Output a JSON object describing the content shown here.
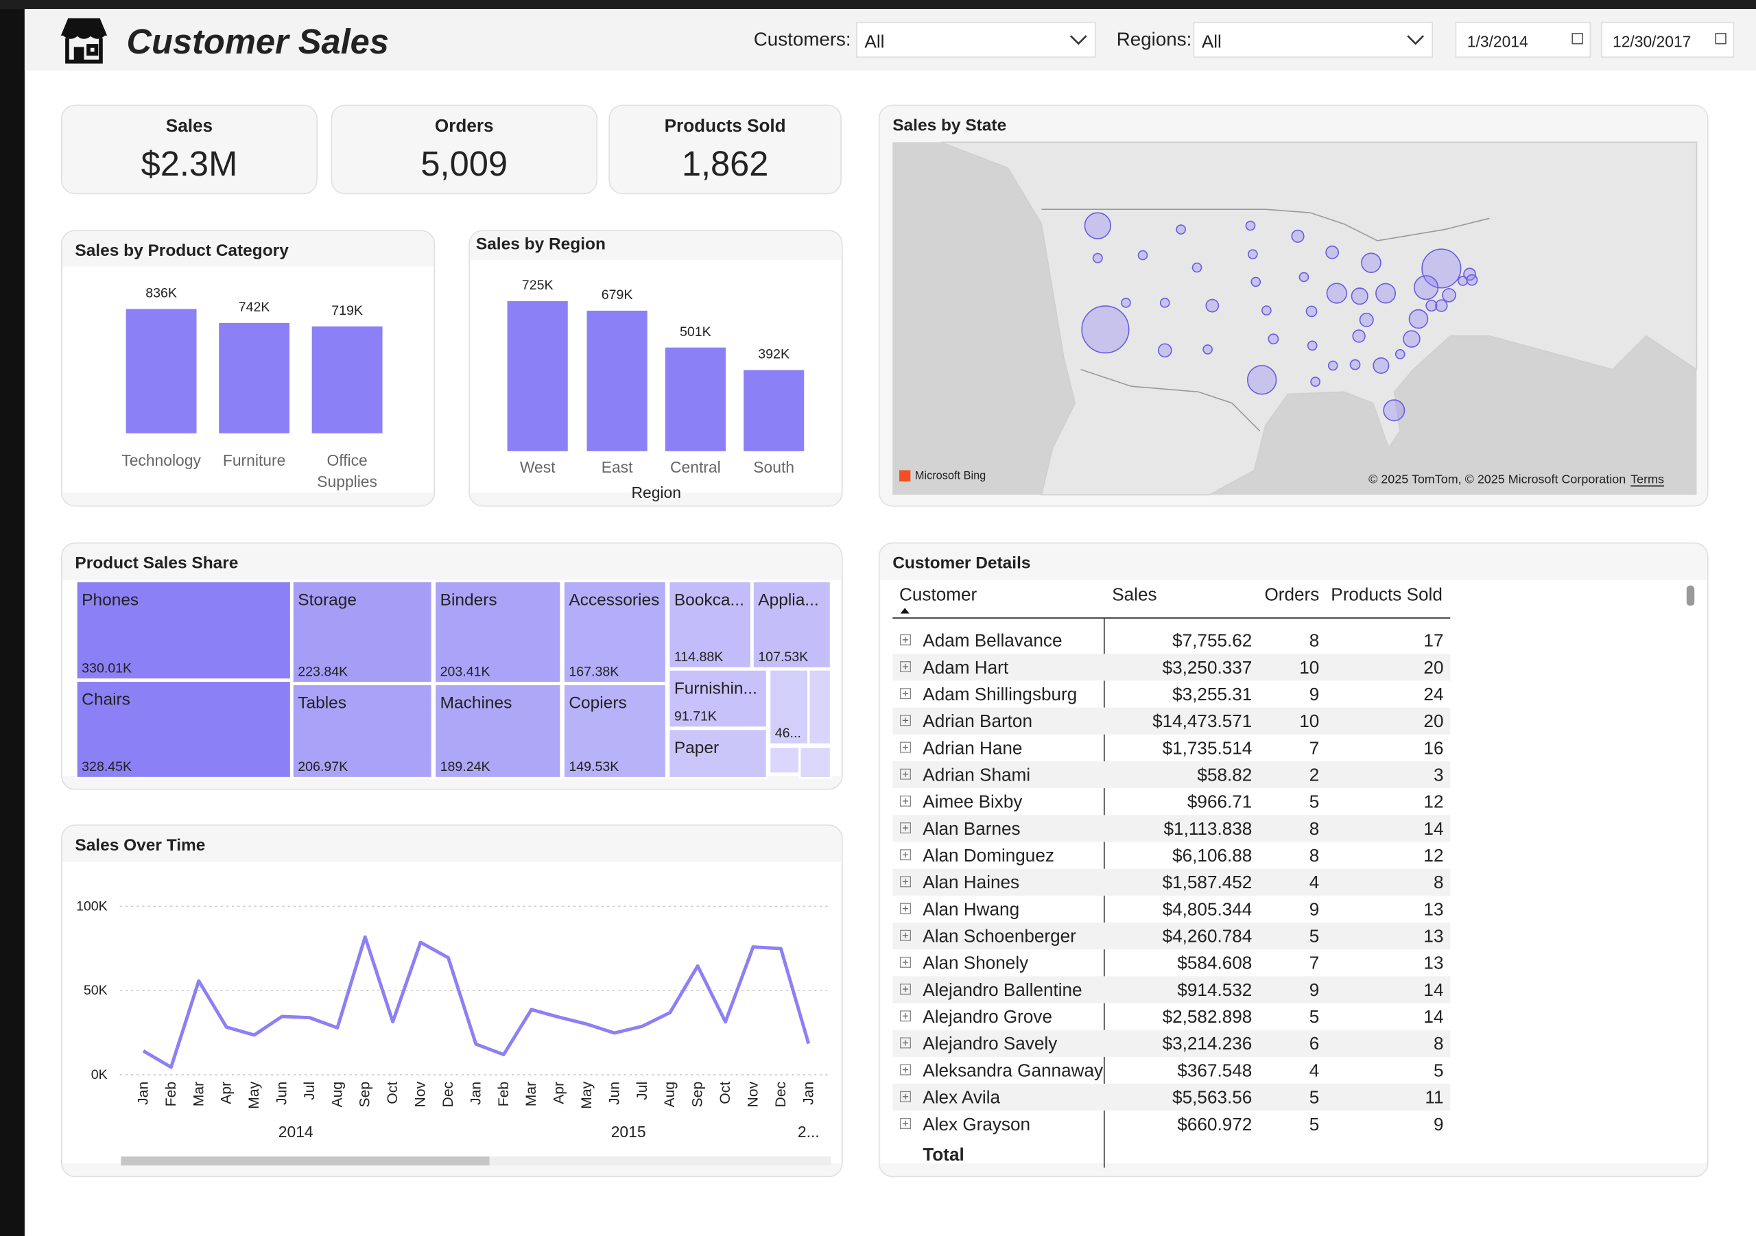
{
  "header": {
    "title": "Customer Sales",
    "customers_label": "Customers:",
    "customers_value": "All",
    "regions_label": "Regions:",
    "regions_value": "All",
    "date_from": "1/3/2014",
    "date_to": "12/30/2017"
  },
  "kpis": [
    {
      "label": "Sales",
      "value": "$2.3M"
    },
    {
      "label": "Orders",
      "value": "5,009"
    },
    {
      "label": "Products Sold",
      "value": "1,862"
    }
  ],
  "chart_data": [
    {
      "type": "bar",
      "title": "Sales by Product Category",
      "categories": [
        "Technology",
        "Furniture",
        "Office Supplies"
      ],
      "values": [
        836,
        742,
        719
      ],
      "value_labels": [
        "836K",
        "742K",
        "719K"
      ],
      "color": "#8b80f5"
    },
    {
      "type": "bar",
      "title": "Sales by Region",
      "x_label": "Region",
      "categories": [
        "West",
        "East",
        "Central",
        "South"
      ],
      "values": [
        725,
        679,
        501,
        392
      ],
      "value_labels": [
        "725K",
        "679K",
        "501K",
        "392K"
      ],
      "color": "#8b80f5"
    },
    {
      "type": "treemap",
      "title": "Product Sales Share",
      "color": "#8b80f5",
      "categories": [
        "Phones",
        "Chairs",
        "Storage",
        "Tables",
        "Binders",
        "Machines",
        "Accessories",
        "Copiers",
        "Bookca...",
        "Applia...",
        "Furnishin...",
        "Paper",
        null,
        null,
        null,
        null
      ],
      "values": [
        330.01,
        328.45,
        223.84,
        206.97,
        203.41,
        189.24,
        167.38,
        149.53,
        114.88,
        107.53,
        91.71,
        78,
        46,
        27,
        16,
        12
      ],
      "value_labels": [
        "330.01K",
        "328.45K",
        "223.84K",
        "206.97K",
        "203.41K",
        "189.24K",
        "167.38K",
        "149.53K",
        "114.88K",
        "107.53K",
        "91.71K",
        null,
        "46...",
        null,
        null,
        null
      ]
    },
    {
      "type": "line",
      "title": "Sales Over Time",
      "color": "#8b80f5",
      "grid": true,
      "categories": [
        "Jan",
        "Feb",
        "Mar",
        "Apr",
        "May",
        "Jun",
        "Jul",
        "Aug",
        "Sep",
        "Oct",
        "Nov",
        "Dec",
        "Jan",
        "Feb",
        "Mar",
        "Apr",
        "May",
        "Jun",
        "Jul",
        "Aug",
        "Sep",
        "Oct",
        "Nov",
        "Dec",
        "Jan"
      ],
      "category_groups": [
        "2014",
        "2015",
        "2..."
      ],
      "values": [
        14.2,
        4.5,
        55.7,
        28.3,
        23.6,
        34.6,
        33.9,
        27.9,
        81.8,
        31.5,
        78.6,
        69.5,
        18.2,
        12,
        38.7,
        34.2,
        30.1,
        24.8,
        28.8,
        36.9,
        64.6,
        31.4,
        75.9,
        74.9,
        18.5
      ],
      "ylim": [
        0,
        105
      ],
      "yticks": [
        {
          "value": 0,
          "label": "0K"
        },
        {
          "value": 50,
          "label": "50K"
        },
        {
          "value": 100,
          "label": "100K"
        }
      ]
    },
    {
      "type": "map",
      "title": "Sales by State",
      "color": "#8b80f5",
      "attribution": "© 2025 TomTom, © 2025 Microsoft Corporation",
      "terms": "Terms",
      "provider": "Microsoft Bing",
      "x": [
        -119.5,
        -75.5,
        -99,
        -120.5,
        -77.5,
        -81.7,
        -89.2,
        -82.8,
        -84.7,
        -78.5,
        -79.4,
        -86.2,
        -83.4,
        -85.3,
        -111.7,
        -105.5,
        -89.8,
        -86.3,
        -94.3,
        -71.8,
        -74.5,
        -120.5,
        -116.8,
        -111.7,
        -92.5,
        -97.5,
        -86.8,
        -89.7,
        -92,
        -92.4,
        -99.8,
        -98.4,
        -93.5,
        -100.2,
        -100.5,
        -109.6,
        -114.6,
        -107.5,
        -106.1,
        -80.9,
        -76.8,
        -75.5,
        -72.7,
        -71.5
      ],
      "y": [
        36.5,
        42.9,
        31.2,
        47.4,
        40.9,
        28,
        40.3,
        40.3,
        43.5,
        37.6,
        35.5,
        40,
        32.7,
        37.5,
        34.3,
        39,
        44.6,
        35.8,
        46.3,
        42.3,
        40.1,
        44,
        39.3,
        39.3,
        38.4,
        35.5,
        32.8,
        32.7,
        31,
        34.8,
        41.5,
        38.5,
        42,
        44.4,
        47.4,
        47,
        44.3,
        43,
        34.4,
        33.9,
        39,
        39,
        41.6,
        41.7
      ],
      "sizes": [
        457.7,
        310.9,
        170.2,
        138.6,
        116.5,
        89.5,
        80.2,
        78.3,
        76.3,
        70.6,
        55.6,
        53.6,
        49.1,
        36.6,
        35.3,
        32.1,
        32.1,
        30.7,
        29.9,
        28.6,
        35.8,
        17.4,
        16.7,
        11.2,
        22.2,
        19.7,
        19.5,
        10.8,
        9.2,
        11.7,
        7.5,
        2.9,
        4.6,
        1.3,
        0.9,
        5.6,
        4.4,
        1.6,
        4.8,
        8.5,
        23.7,
        27.5,
        13.4,
        22.6
      ]
    }
  ],
  "table": {
    "title": "Customer Details",
    "columns": [
      "Customer",
      "Sales",
      "Orders",
      "Products Sold"
    ],
    "rows": [
      [
        "Adam Bellavance",
        "$7,755.62",
        8,
        17
      ],
      [
        "Adam Hart",
        "$3,250.337",
        10,
        20
      ],
      [
        "Adam Shillingsburg",
        "$3,255.31",
        9,
        24
      ],
      [
        "Adrian Barton",
        "$14,473.571",
        10,
        20
      ],
      [
        "Adrian Hane",
        "$1,735.514",
        7,
        16
      ],
      [
        "Adrian Shami",
        "$58.82",
        2,
        3
      ],
      [
        "Aimee Bixby",
        "$966.71",
        5,
        12
      ],
      [
        "Alan Barnes",
        "$1,113.838",
        8,
        14
      ],
      [
        "Alan Dominguez",
        "$6,106.88",
        8,
        12
      ],
      [
        "Alan Haines",
        "$1,587.452",
        4,
        8
      ],
      [
        "Alan Hwang",
        "$4,805.344",
        9,
        13
      ],
      [
        "Alan Schoenberger",
        "$4,260.784",
        5,
        13
      ],
      [
        "Alan Shonely",
        "$584.608",
        7,
        13
      ],
      [
        "Alejandro Ballentine",
        "$914.532",
        9,
        14
      ],
      [
        "Alejandro Grove",
        "$2,582.898",
        5,
        14
      ],
      [
        "Alejandro Savely",
        "$3,214.236",
        6,
        8
      ],
      [
        "Aleksandra Gannaway",
        "$367.548",
        4,
        5
      ],
      [
        "Alex Avila",
        "$5,563.56",
        5,
        11
      ],
      [
        "Alex Grayson",
        "$660.972",
        5,
        9
      ]
    ],
    "total": "Total"
  }
}
